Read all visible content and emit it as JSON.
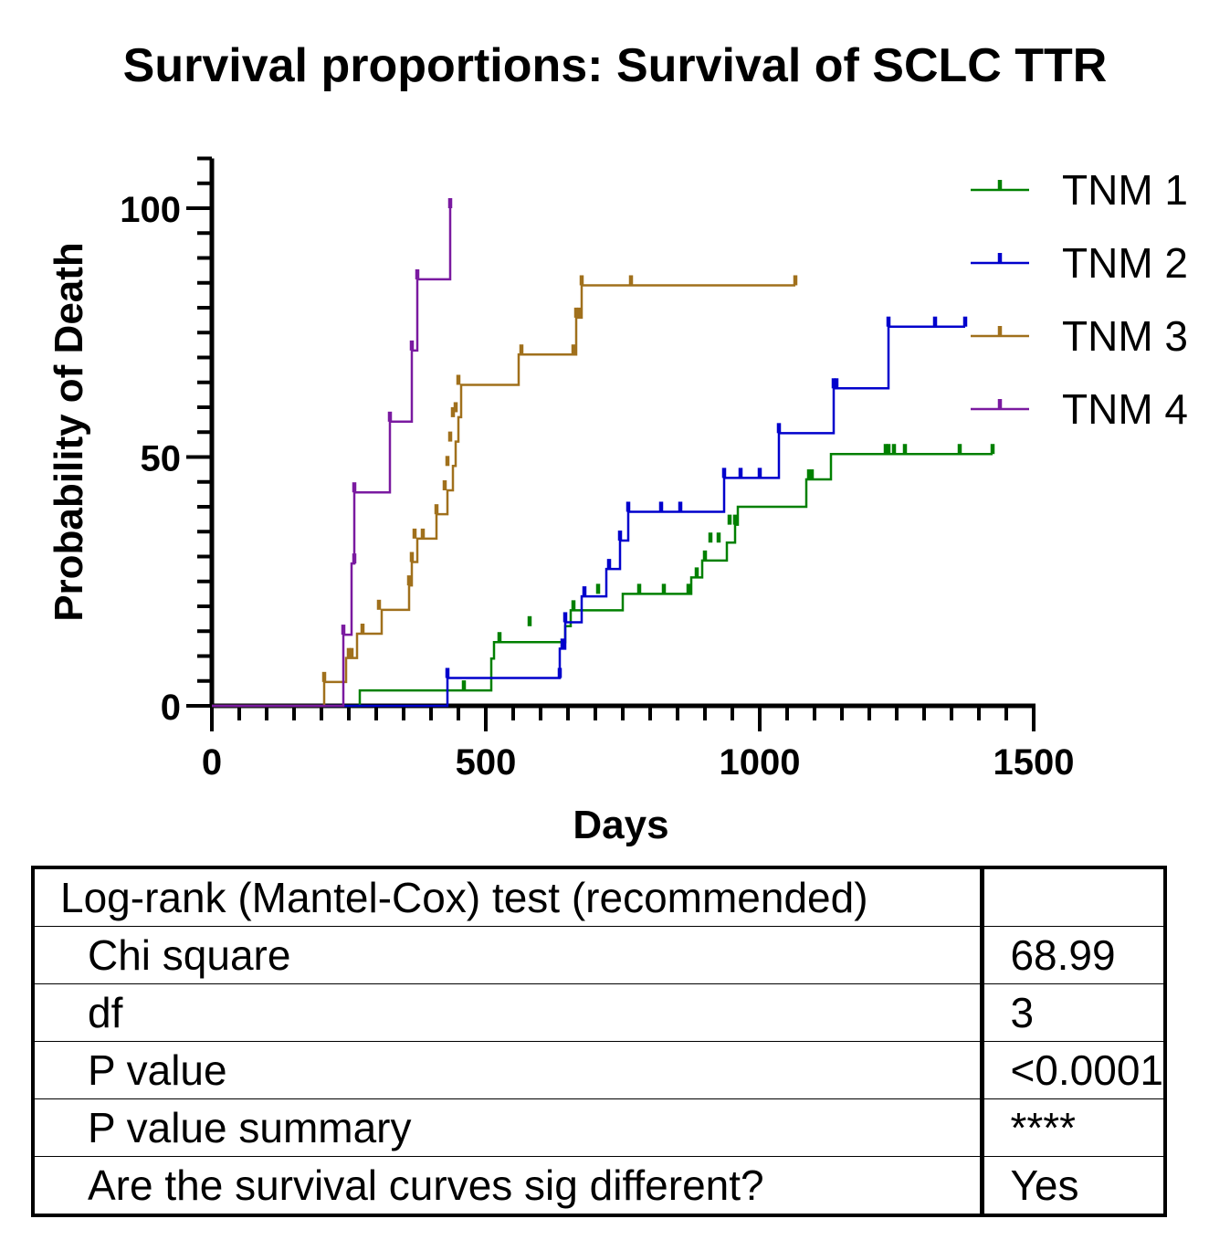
{
  "chart_data": {
    "type": "line",
    "step": true,
    "title": "Survival proportions: Survival of SCLC TTR",
    "xlabel": "Days",
    "ylabel": "Probability of Death",
    "xlim": [
      0,
      1500
    ],
    "ylim": [
      0,
      110
    ],
    "x_ticks": [
      "0",
      "500",
      "1000",
      "1500"
    ],
    "y_ticks": [
      "0",
      "50",
      "100"
    ],
    "legend_position": "top-right",
    "series": [
      {
        "name": "TNM 1",
        "color": "#008000",
        "steps": [
          [
            0,
            0
          ],
          [
            270,
            3.1
          ],
          [
            510,
            9.5
          ],
          [
            515,
            12.8
          ],
          [
            645,
            16
          ],
          [
            655,
            19.2
          ],
          [
            750,
            22.5
          ],
          [
            875,
            25.8
          ],
          [
            895,
            29.2
          ],
          [
            940,
            32.8
          ],
          [
            955,
            36.4
          ],
          [
            960,
            40
          ],
          [
            1085,
            45.5
          ],
          [
            1130,
            50.6
          ],
          [
            1425,
            50.6
          ]
        ],
        "censored": [
          [
            460,
            3.1
          ],
          [
            525,
            12.8
          ],
          [
            580,
            16
          ],
          [
            660,
            19.2
          ],
          [
            705,
            22.5
          ],
          [
            780,
            22.5
          ],
          [
            825,
            22.5
          ],
          [
            870,
            22.5
          ],
          [
            885,
            25.8
          ],
          [
            900,
            29.2
          ],
          [
            910,
            32.8
          ],
          [
            925,
            32.8
          ],
          [
            945,
            36.4
          ],
          [
            955,
            36.4
          ],
          [
            1090,
            45.5
          ],
          [
            1095,
            45.5
          ],
          [
            1230,
            50.6
          ],
          [
            1235,
            50.6
          ],
          [
            1245,
            50.6
          ],
          [
            1265,
            50.6
          ],
          [
            1365,
            50.6
          ],
          [
            1425,
            50.6
          ]
        ]
      },
      {
        "name": "TNM 2",
        "color": "#0000cc",
        "steps": [
          [
            0,
            0
          ],
          [
            430,
            5.6
          ],
          [
            635,
            11.5
          ],
          [
            645,
            16.8
          ],
          [
            675,
            22
          ],
          [
            720,
            27.5
          ],
          [
            745,
            33.2
          ],
          [
            760,
            39
          ],
          [
            935,
            45.8
          ],
          [
            1035,
            54.8
          ],
          [
            1135,
            63.8
          ],
          [
            1235,
            76.2
          ],
          [
            1375,
            76.2
          ]
        ],
        "censored": [
          [
            430,
            5.6
          ],
          [
            635,
            5.6
          ],
          [
            640,
            11.5
          ],
          [
            645,
            16.8
          ],
          [
            680,
            22
          ],
          [
            725,
            27.5
          ],
          [
            745,
            33.2
          ],
          [
            760,
            39
          ],
          [
            820,
            39
          ],
          [
            855,
            39
          ],
          [
            935,
            45.8
          ],
          [
            965,
            45.8
          ],
          [
            1000,
            45.8
          ],
          [
            1035,
            54.8
          ],
          [
            1135,
            63.8
          ],
          [
            1140,
            63.8
          ],
          [
            1235,
            76.2
          ],
          [
            1320,
            76.2
          ],
          [
            1375,
            76.2
          ]
        ]
      },
      {
        "name": "TNM 3",
        "color": "#a0701c",
        "steps": [
          [
            0,
            0
          ],
          [
            205,
            4.8
          ],
          [
            245,
            9.6
          ],
          [
            265,
            14.5
          ],
          [
            310,
            19.3
          ],
          [
            360,
            24.2
          ],
          [
            365,
            28.9
          ],
          [
            375,
            33.6
          ],
          [
            410,
            38.5
          ],
          [
            430,
            43.3
          ],
          [
            440,
            48.2
          ],
          [
            445,
            53.1
          ],
          [
            450,
            58
          ],
          [
            455,
            64.5
          ],
          [
            560,
            70.6
          ],
          [
            665,
            78
          ],
          [
            675,
            84.5
          ],
          [
            1065,
            84.5
          ]
        ],
        "censored": [
          [
            205,
            4.8
          ],
          [
            250,
            9.6
          ],
          [
            255,
            9.6
          ],
          [
            275,
            14.5
          ],
          [
            305,
            19.3
          ],
          [
            360,
            24.2
          ],
          [
            365,
            28.9
          ],
          [
            370,
            33.6
          ],
          [
            385,
            33.6
          ],
          [
            410,
            38.5
          ],
          [
            425,
            43.3
          ],
          [
            430,
            48.2
          ],
          [
            435,
            53.1
          ],
          [
            440,
            58
          ],
          [
            445,
            59
          ],
          [
            450,
            64.5
          ],
          [
            565,
            70.6
          ],
          [
            660,
            70.6
          ],
          [
            665,
            78
          ],
          [
            670,
            78
          ],
          [
            675,
            84.5
          ],
          [
            765,
            84.5
          ],
          [
            1065,
            84.5
          ]
        ]
      },
      {
        "name": "TNM 4",
        "color": "#7a1aa0",
        "steps": [
          [
            0,
            0
          ],
          [
            240,
            14.3
          ],
          [
            255,
            28.6
          ],
          [
            260,
            42.9
          ],
          [
            325,
            57.1
          ],
          [
            365,
            71.4
          ],
          [
            375,
            85.7
          ],
          [
            435,
            100
          ]
        ],
        "censored": [
          [
            240,
            14.3
          ],
          [
            260,
            28.6
          ],
          [
            260,
            42.9
          ],
          [
            325,
            57.1
          ],
          [
            365,
            71.4
          ],
          [
            375,
            85.7
          ],
          [
            435,
            100
          ]
        ]
      }
    ]
  },
  "stats_table": {
    "rows": [
      {
        "label": "Log-rank (Mantel-Cox) test (recommended)",
        "value": ""
      },
      {
        "label": "Chi square",
        "value": "68.99"
      },
      {
        "label": "df",
        "value": "3"
      },
      {
        "label": "P value",
        "value": "<0.0001"
      },
      {
        "label": "P value summary",
        "value": "****"
      },
      {
        "label": "Are the survival curves sig different?",
        "value": "Yes"
      }
    ]
  }
}
